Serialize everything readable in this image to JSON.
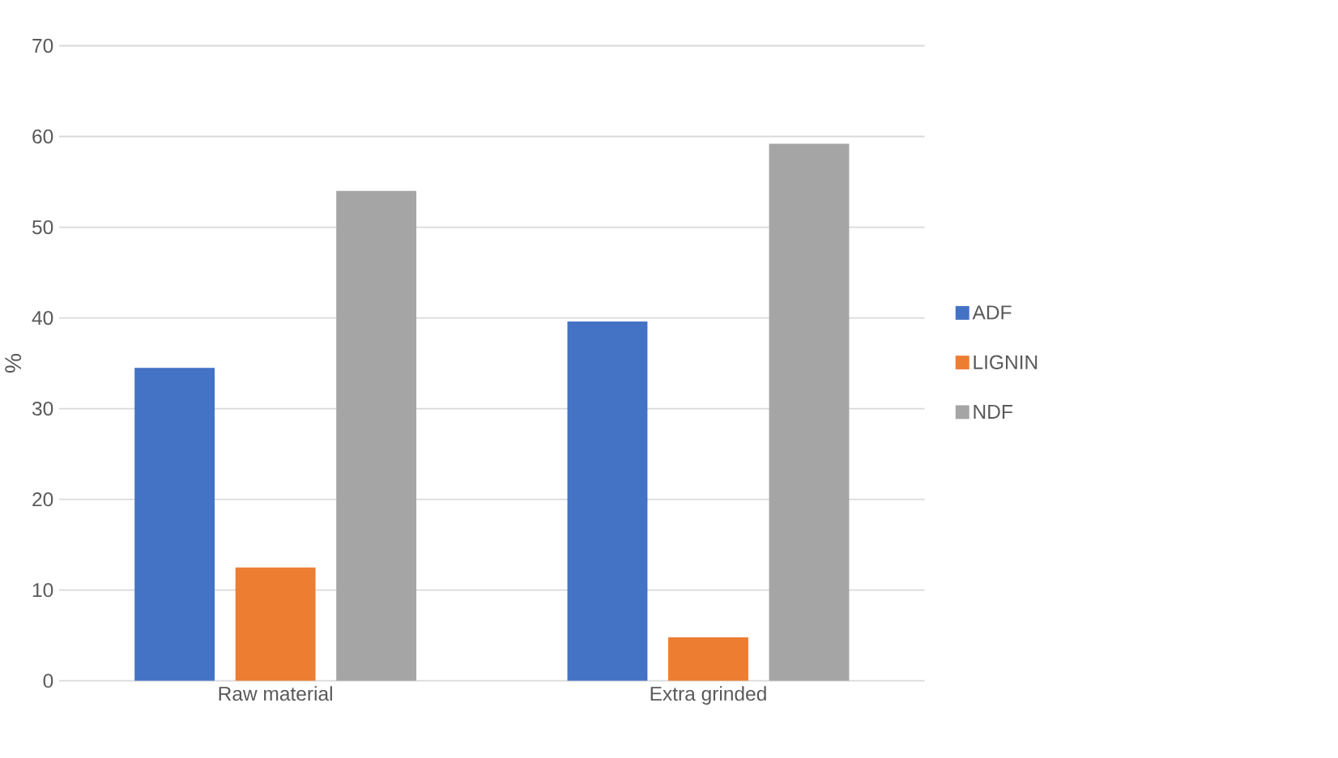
{
  "chart_data": {
    "type": "bar",
    "ylabel": "%",
    "categories": [
      "Raw material",
      "Extra grinded"
    ],
    "series": [
      {
        "name": "ADF",
        "color": "#4472c4",
        "values": [
          34.5,
          39.6
        ]
      },
      {
        "name": "LIGNIN",
        "color": "#ed7d31",
        "values": [
          12.5,
          4.8
        ]
      },
      {
        "name": "NDF",
        "color": "#a5a5a5",
        "values": [
          54.0,
          59.2
        ]
      }
    ],
    "ylim": [
      0,
      70
    ],
    "yticks": [
      0,
      10,
      20,
      30,
      40,
      50,
      60,
      70
    ],
    "grid": "y",
    "legend": "right"
  }
}
